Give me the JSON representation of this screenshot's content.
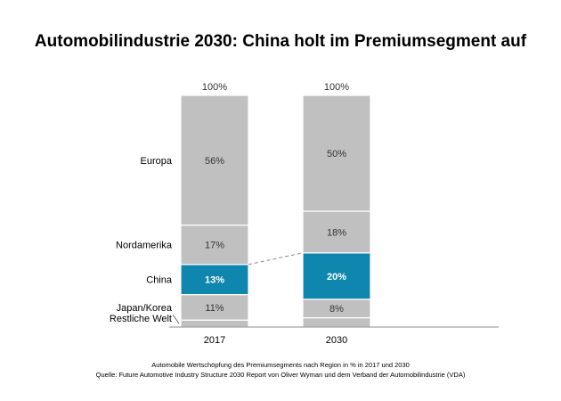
{
  "chart_data": {
    "type": "bar",
    "stacked": true,
    "title": "Automobilindustrie 2030: China holt im Premiumsegment auf",
    "categories": [
      "2017",
      "2030"
    ],
    "totals": [
      "100%",
      "100%"
    ],
    "series": [
      {
        "name": "Restliche Welt",
        "values": [
          3,
          4
        ],
        "color": "#c0c0c0",
        "labels": [
          "",
          ""
        ]
      },
      {
        "name": "Japan/Korea",
        "values": [
          11,
          8
        ],
        "color": "#c0c0c0",
        "labels": [
          "11%",
          "8%"
        ]
      },
      {
        "name": "China",
        "values": [
          13,
          20
        ],
        "color": "#0f86ad",
        "labels": [
          "13%",
          "20%"
        ],
        "highlight": true
      },
      {
        "name": "Nordamerika",
        "values": [
          17,
          18
        ],
        "color": "#c0c0c0",
        "labels": [
          "17%",
          "18%"
        ]
      },
      {
        "name": "Europa",
        "values": [
          56,
          50
        ],
        "color": "#c0c0c0",
        "labels": [
          "56%",
          "50%"
        ]
      }
    ],
    "ylim": [
      0,
      100
    ],
    "grid": false,
    "connector_series": "China"
  },
  "footnote": {
    "line1": "Automobile Wertschöpfung des Premiumsegments nach Region in % in 2017 und 2030",
    "line2": "Quelle: Future Automotive Industry Structure 2030 Report von Oliver Wyman und dem Verband der Automobilindustrie (VDA)"
  },
  "colors": {
    "bar_gray": "#c0c0c0",
    "highlight": "#0f86ad",
    "label_dark": "#333333",
    "label_light": "#ffffff"
  }
}
